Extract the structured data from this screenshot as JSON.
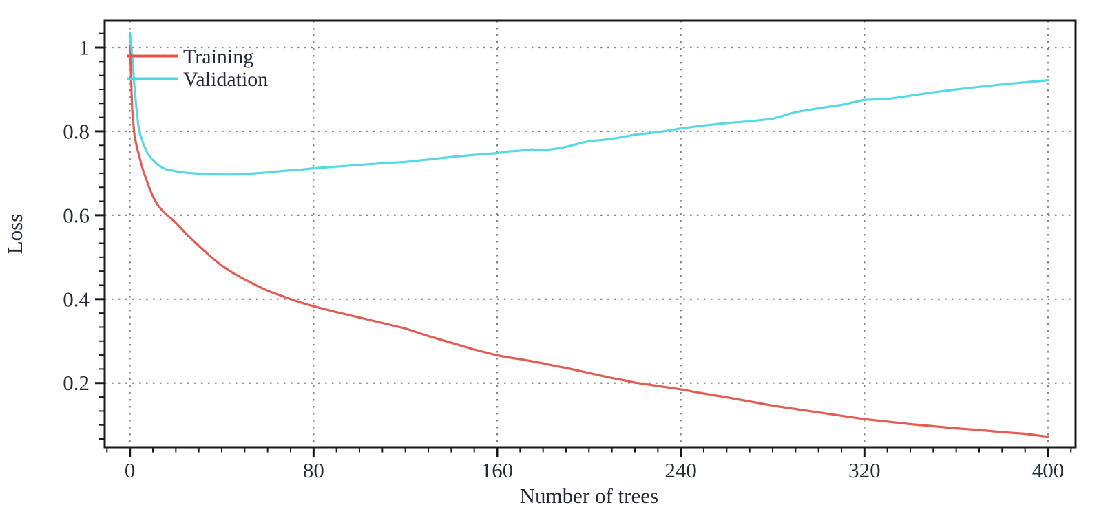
{
  "chart_data": {
    "type": "line",
    "title": "",
    "xlabel": "Number of trees",
    "ylabel": "Loss",
    "xlim": [
      -11,
      412
    ],
    "ylim": [
      0.047,
      1.064
    ],
    "x_major_ticks": [
      0,
      80,
      160,
      240,
      320,
      400
    ],
    "x_major_tick_labels": [
      "0",
      "80",
      "160",
      "240",
      "320",
      "400"
    ],
    "x_minor_step": 10,
    "y_major_ticks": [
      0.2,
      0.4,
      0.6,
      0.8,
      1
    ],
    "y_major_tick_labels": [
      "0.2",
      "0.4",
      "0.6",
      "0.8",
      "1"
    ],
    "y_minor_step": 0.033333,
    "grid": "dotted lines at major ticks, both axes",
    "legend_position": "top-left inside plot",
    "x": [
      0,
      1,
      2,
      3,
      4,
      5,
      6,
      7,
      8,
      9,
      10,
      12,
      14,
      16,
      18,
      20,
      25,
      30,
      35,
      40,
      45,
      50,
      55,
      60,
      65,
      70,
      75,
      80,
      90,
      100,
      110,
      120,
      130,
      140,
      150,
      160,
      165,
      170,
      175,
      180,
      185,
      190,
      195,
      200,
      205,
      210,
      215,
      220,
      230,
      240,
      250,
      260,
      270,
      280,
      290,
      300,
      310,
      320,
      330,
      340,
      350,
      360,
      370,
      380,
      390,
      400
    ],
    "series": [
      {
        "name": "Training",
        "color": "#e0544b",
        "values": [
          1.005,
          0.85,
          0.79,
          0.762,
          0.742,
          0.722,
          0.702,
          0.688,
          0.672,
          0.658,
          0.645,
          0.625,
          0.612,
          0.601,
          0.592,
          0.582,
          0.553,
          0.527,
          0.502,
          0.48,
          0.462,
          0.447,
          0.433,
          0.42,
          0.41,
          0.4,
          0.391,
          0.383,
          0.369,
          0.356,
          0.343,
          0.33,
          0.312,
          0.296,
          0.28,
          0.266,
          0.261,
          0.257,
          0.252,
          0.247,
          0.241,
          0.236,
          0.23,
          0.224,
          0.218,
          0.212,
          0.207,
          0.201,
          0.193,
          0.185,
          0.175,
          0.166,
          0.156,
          0.146,
          0.138,
          0.13,
          0.122,
          0.114,
          0.108,
          0.102,
          0.097,
          0.092,
          0.088,
          0.083,
          0.079,
          0.072
        ]
      },
      {
        "name": "Validation",
        "color": "#4dd6e6",
        "values": [
          1.035,
          0.98,
          0.905,
          0.845,
          0.8,
          0.785,
          0.768,
          0.755,
          0.745,
          0.738,
          0.732,
          0.721,
          0.714,
          0.709,
          0.707,
          0.705,
          0.701,
          0.699,
          0.698,
          0.697,
          0.697,
          0.698,
          0.7,
          0.702,
          0.705,
          0.707,
          0.709,
          0.712,
          0.716,
          0.72,
          0.724,
          0.727,
          0.733,
          0.739,
          0.744,
          0.748,
          0.752,
          0.754,
          0.757,
          0.755,
          0.758,
          0.763,
          0.77,
          0.777,
          0.779,
          0.782,
          0.787,
          0.792,
          0.798,
          0.807,
          0.814,
          0.82,
          0.824,
          0.83,
          0.846,
          0.855,
          0.863,
          0.875,
          0.877,
          0.885,
          0.893,
          0.9,
          0.906,
          0.912,
          0.917,
          0.922
        ]
      }
    ]
  },
  "legend": {
    "items": [
      {
        "label": "Training"
      },
      {
        "label": "Validation"
      }
    ]
  },
  "colors": {
    "background": "#ffffff",
    "frame": "#1a1a1a",
    "tick": "#1a1a1a",
    "grid": "#868686",
    "text": "#242b38",
    "training_line": "#e0544b",
    "validation_line": "#4dd6e6"
  }
}
